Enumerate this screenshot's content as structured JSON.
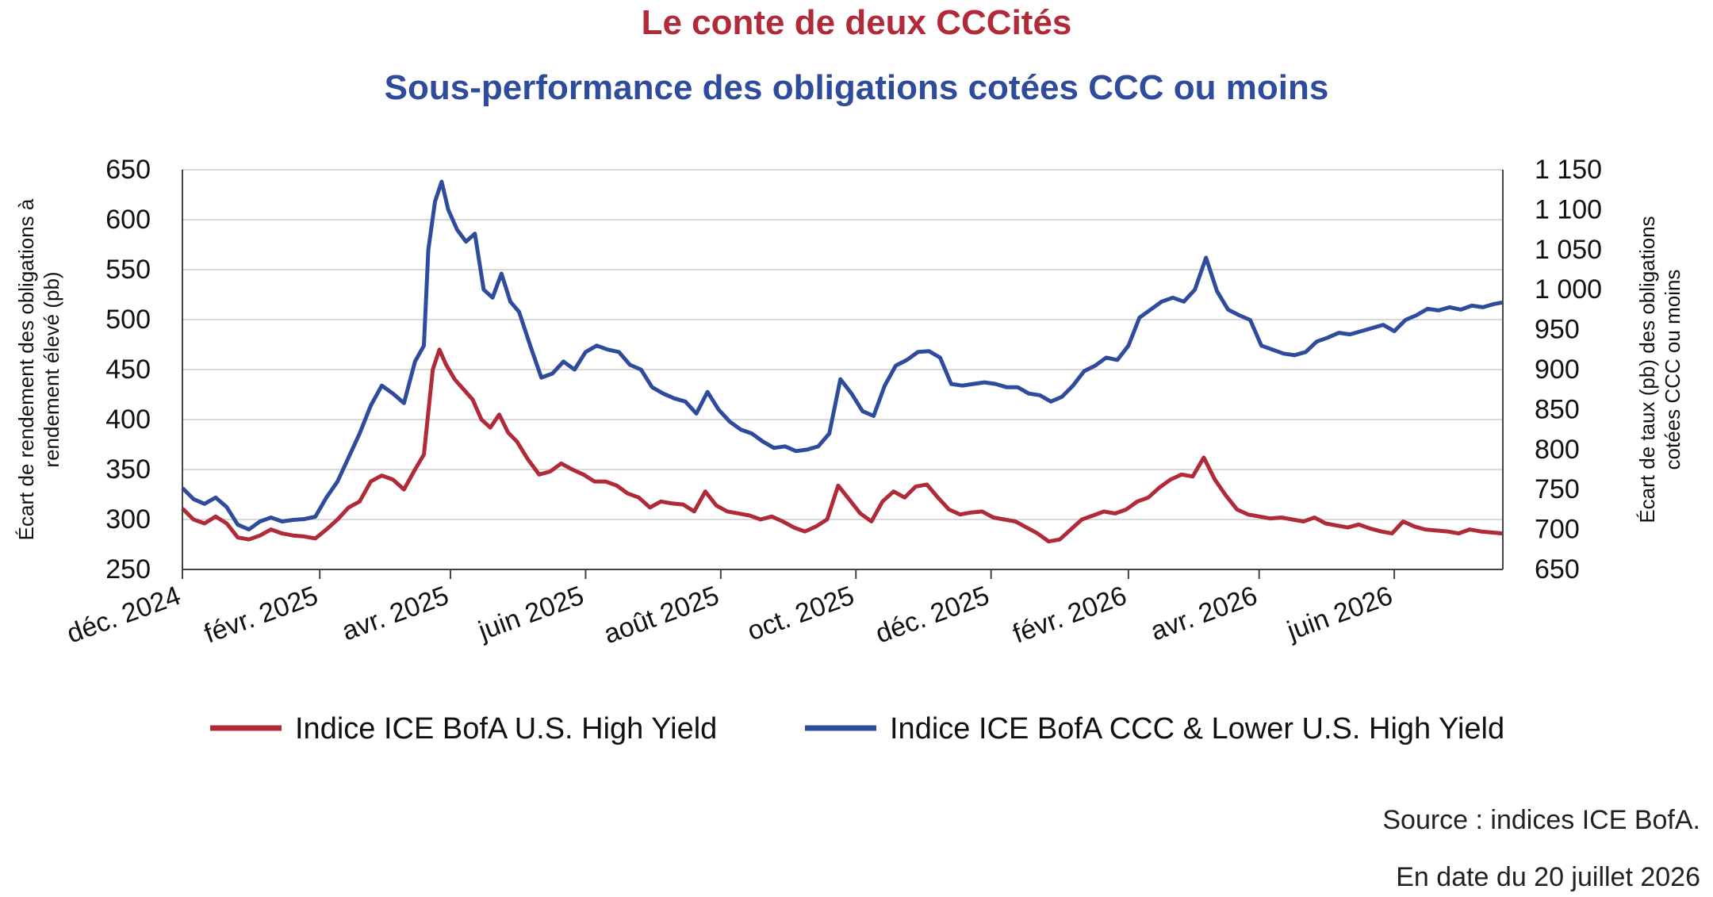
{
  "title": "Le conte de deux CCCités",
  "subtitle": "Sous-performance des obligations cotées CCC ou moins",
  "source": "Source : indices ICE BofA.",
  "as_of": "En date du 20 juillet 2026",
  "colors": {
    "hy": "#b02a38",
    "ccc": "#2f4b9c",
    "axis": "#444444",
    "grid": "#d9d9d9"
  },
  "chart_data": {
    "type": "line",
    "grid": "horizontal",
    "legend_position": "bottom",
    "y_left": {
      "label": "Écart de rendement des obligations à rendement élevé (pb)",
      "range": [
        250,
        650
      ],
      "ticks": [
        250,
        300,
        350,
        400,
        450,
        500,
        550,
        600,
        650
      ],
      "tick_labels": [
        "250",
        "300",
        "350",
        "400",
        "450",
        "500",
        "550",
        "600",
        "650"
      ]
    },
    "y_right": {
      "label": "Écart de taux (pb) des obligations cotées CCC ou moins",
      "range": [
        650,
        1150
      ],
      "ticks": [
        650,
        700,
        750,
        800,
        850,
        900,
        950,
        1000,
        1050,
        1100,
        1150
      ],
      "tick_labels": [
        "650",
        "700",
        "750",
        "800",
        "850",
        "900",
        "950",
        "1 000",
        "1 050",
        "1 100",
        "1 150"
      ]
    },
    "x_ticks": [
      {
        "date": "2024-12-01",
        "label": "déc. 2024"
      },
      {
        "date": "2025-02-01",
        "label": "févr. 2025"
      },
      {
        "date": "2025-04-01",
        "label": "avr. 2025"
      },
      {
        "date": "2025-06-01",
        "label": "juin 2025"
      },
      {
        "date": "2025-08-01",
        "label": "août 2025"
      },
      {
        "date": "2025-10-01",
        "label": "oct. 2025"
      },
      {
        "date": "2025-12-01",
        "label": "déc. 2025"
      },
      {
        "date": "2026-02-01",
        "label": "févr. 2026"
      },
      {
        "date": "2026-04-01",
        "label": "avr. 2026"
      },
      {
        "date": "2026-06-01",
        "label": "juin 2026"
      }
    ],
    "x_range": [
      "2024-12-01",
      "2026-07-20"
    ],
    "series": [
      {
        "name": "Indice ICE BofA U.S. High Yield",
        "axis": "left",
        "color": "#b02a38",
        "points": [
          [
            "2024-12-01",
            311
          ],
          [
            "2024-12-06",
            300
          ],
          [
            "2024-12-11",
            296
          ],
          [
            "2024-12-16",
            303
          ],
          [
            "2024-12-21",
            296
          ],
          [
            "2024-12-26",
            282
          ],
          [
            "2024-12-31",
            280
          ],
          [
            "2025-01-05",
            284
          ],
          [
            "2025-01-10",
            290
          ],
          [
            "2025-01-15",
            286
          ],
          [
            "2025-01-20",
            284
          ],
          [
            "2025-01-25",
            283
          ],
          [
            "2025-01-30",
            281
          ],
          [
            "2025-02-04",
            290
          ],
          [
            "2025-02-09",
            300
          ],
          [
            "2025-02-14",
            312
          ],
          [
            "2025-02-19",
            318
          ],
          [
            "2025-02-24",
            338
          ],
          [
            "2025-03-01",
            344
          ],
          [
            "2025-03-06",
            340
          ],
          [
            "2025-03-11",
            330
          ],
          [
            "2025-03-16",
            350
          ],
          [
            "2025-03-20",
            365
          ],
          [
            "2025-03-24",
            450
          ],
          [
            "2025-03-27",
            470
          ],
          [
            "2025-03-30",
            455
          ],
          [
            "2025-04-03",
            440
          ],
          [
            "2025-04-07",
            430
          ],
          [
            "2025-04-11",
            420
          ],
          [
            "2025-04-15",
            400
          ],
          [
            "2025-04-19",
            392
          ],
          [
            "2025-04-23",
            405
          ],
          [
            "2025-04-27",
            387
          ],
          [
            "2025-05-01",
            378
          ],
          [
            "2025-05-06",
            360
          ],
          [
            "2025-05-11",
            345
          ],
          [
            "2025-05-16",
            348
          ],
          [
            "2025-05-21",
            356
          ],
          [
            "2025-05-26",
            350
          ],
          [
            "2025-05-31",
            345
          ],
          [
            "2025-06-05",
            338
          ],
          [
            "2025-06-10",
            338
          ],
          [
            "2025-06-15",
            334
          ],
          [
            "2025-06-20",
            326
          ],
          [
            "2025-06-25",
            322
          ],
          [
            "2025-06-30",
            312
          ],
          [
            "2025-07-05",
            318
          ],
          [
            "2025-07-10",
            316
          ],
          [
            "2025-07-15",
            315
          ],
          [
            "2025-07-20",
            308
          ],
          [
            "2025-07-25",
            328
          ],
          [
            "2025-07-30",
            314
          ],
          [
            "2025-08-04",
            308
          ],
          [
            "2025-08-09",
            306
          ],
          [
            "2025-08-14",
            304
          ],
          [
            "2025-08-19",
            300
          ],
          [
            "2025-08-24",
            303
          ],
          [
            "2025-08-29",
            298
          ],
          [
            "2025-09-03",
            292
          ],
          [
            "2025-09-08",
            288
          ],
          [
            "2025-09-13",
            293
          ],
          [
            "2025-09-18",
            300
          ],
          [
            "2025-09-23",
            334
          ],
          [
            "2025-09-28",
            320
          ],
          [
            "2025-10-03",
            306
          ],
          [
            "2025-10-08",
            298
          ],
          [
            "2025-10-13",
            318
          ],
          [
            "2025-10-18",
            328
          ],
          [
            "2025-10-23",
            322
          ],
          [
            "2025-10-28",
            333
          ],
          [
            "2025-11-02",
            335
          ],
          [
            "2025-11-07",
            322
          ],
          [
            "2025-11-12",
            310
          ],
          [
            "2025-11-17",
            305
          ],
          [
            "2025-11-22",
            307
          ],
          [
            "2025-11-27",
            308
          ],
          [
            "2025-12-02",
            302
          ],
          [
            "2025-12-07",
            300
          ],
          [
            "2025-12-12",
            298
          ],
          [
            "2025-12-17",
            292
          ],
          [
            "2025-12-22",
            286
          ],
          [
            "2025-12-27",
            278
          ],
          [
            "2026-01-01",
            280
          ],
          [
            "2026-01-06",
            290
          ],
          [
            "2026-01-11",
            300
          ],
          [
            "2026-01-16",
            304
          ],
          [
            "2026-01-21",
            308
          ],
          [
            "2026-01-26",
            306
          ],
          [
            "2026-01-31",
            310
          ],
          [
            "2026-02-05",
            318
          ],
          [
            "2026-02-10",
            322
          ],
          [
            "2026-02-15",
            332
          ],
          [
            "2026-02-20",
            340
          ],
          [
            "2026-02-25",
            345
          ],
          [
            "2026-03-02",
            343
          ],
          [
            "2026-03-07",
            362
          ],
          [
            "2026-03-12",
            340
          ],
          [
            "2026-03-17",
            324
          ],
          [
            "2026-03-22",
            310
          ],
          [
            "2026-03-27",
            305
          ],
          [
            "2026-04-01",
            303
          ],
          [
            "2026-04-06",
            301
          ],
          [
            "2026-04-11",
            302
          ],
          [
            "2026-04-16",
            300
          ],
          [
            "2026-04-21",
            298
          ],
          [
            "2026-04-26",
            302
          ],
          [
            "2026-05-01",
            296
          ],
          [
            "2026-05-06",
            294
          ],
          [
            "2026-05-11",
            292
          ],
          [
            "2026-05-16",
            295
          ],
          [
            "2026-05-21",
            291
          ],
          [
            "2026-05-26",
            288
          ],
          [
            "2026-05-31",
            286
          ],
          [
            "2026-06-05",
            298
          ],
          [
            "2026-06-10",
            293
          ],
          [
            "2026-06-15",
            290
          ],
          [
            "2026-06-20",
            289
          ],
          [
            "2026-06-25",
            288
          ],
          [
            "2026-06-30",
            286
          ],
          [
            "2026-07-05",
            290
          ],
          [
            "2026-07-10",
            288
          ],
          [
            "2026-07-15",
            287
          ],
          [
            "2026-07-20",
            286
          ]
        ]
      },
      {
        "name": "Indice ICE BofA CCC & Lower U.S. High Yield",
        "axis": "right",
        "color": "#2f4b9c",
        "points": [
          [
            "2024-12-01",
            752
          ],
          [
            "2024-12-06",
            738
          ],
          [
            "2024-12-11",
            732
          ],
          [
            "2024-12-16",
            740
          ],
          [
            "2024-12-21",
            728
          ],
          [
            "2024-12-26",
            706
          ],
          [
            "2024-12-31",
            700
          ],
          [
            "2025-01-05",
            710
          ],
          [
            "2025-01-10",
            715
          ],
          [
            "2025-01-15",
            710
          ],
          [
            "2025-01-20",
            712
          ],
          [
            "2025-01-25",
            713
          ],
          [
            "2025-01-30",
            716
          ],
          [
            "2025-02-04",
            740
          ],
          [
            "2025-02-09",
            760
          ],
          [
            "2025-02-14",
            790
          ],
          [
            "2025-02-19",
            820
          ],
          [
            "2025-02-24",
            855
          ],
          [
            "2025-03-01",
            880
          ],
          [
            "2025-03-06",
            870
          ],
          [
            "2025-03-11",
            858
          ],
          [
            "2025-03-16",
            910
          ],
          [
            "2025-03-20",
            930
          ],
          [
            "2025-03-22",
            1050
          ],
          [
            "2025-03-25",
            1110
          ],
          [
            "2025-03-28",
            1135
          ],
          [
            "2025-03-31",
            1100
          ],
          [
            "2025-04-04",
            1075
          ],
          [
            "2025-04-08",
            1060
          ],
          [
            "2025-04-12",
            1070
          ],
          [
            "2025-04-16",
            1000
          ],
          [
            "2025-04-20",
            990
          ],
          [
            "2025-04-24",
            1020
          ],
          [
            "2025-04-28",
            985
          ],
          [
            "2025-05-02",
            972
          ],
          [
            "2025-05-07",
            930
          ],
          [
            "2025-05-12",
            890
          ],
          [
            "2025-05-17",
            895
          ],
          [
            "2025-05-22",
            910
          ],
          [
            "2025-05-27",
            900
          ],
          [
            "2025-06-01",
            922
          ],
          [
            "2025-06-06",
            930
          ],
          [
            "2025-06-11",
            925
          ],
          [
            "2025-06-16",
            922
          ],
          [
            "2025-06-21",
            906
          ],
          [
            "2025-06-26",
            900
          ],
          [
            "2025-07-01",
            878
          ],
          [
            "2025-07-06",
            870
          ],
          [
            "2025-07-11",
            864
          ],
          [
            "2025-07-16",
            860
          ],
          [
            "2025-07-21",
            845
          ],
          [
            "2025-07-26",
            872
          ],
          [
            "2025-07-31",
            850
          ],
          [
            "2025-08-05",
            835
          ],
          [
            "2025-08-10",
            825
          ],
          [
            "2025-08-15",
            820
          ],
          [
            "2025-08-20",
            810
          ],
          [
            "2025-08-25",
            802
          ],
          [
            "2025-08-30",
            804
          ],
          [
            "2025-09-04",
            798
          ],
          [
            "2025-09-09",
            800
          ],
          [
            "2025-09-14",
            804
          ],
          [
            "2025-09-19",
            820
          ],
          [
            "2025-09-24",
            888
          ],
          [
            "2025-09-29",
            870
          ],
          [
            "2025-10-04",
            848
          ],
          [
            "2025-10-09",
            842
          ],
          [
            "2025-10-14",
            880
          ],
          [
            "2025-10-19",
            905
          ],
          [
            "2025-10-24",
            912
          ],
          [
            "2025-10-29",
            922
          ],
          [
            "2025-11-03",
            923
          ],
          [
            "2025-11-08",
            915
          ],
          [
            "2025-11-13",
            882
          ],
          [
            "2025-11-18",
            880
          ],
          [
            "2025-11-23",
            882
          ],
          [
            "2025-11-28",
            884
          ],
          [
            "2025-12-03",
            882
          ],
          [
            "2025-12-08",
            878
          ],
          [
            "2025-12-13",
            878
          ],
          [
            "2025-12-18",
            870
          ],
          [
            "2025-12-23",
            868
          ],
          [
            "2025-12-28",
            860
          ],
          [
            "2026-01-02",
            866
          ],
          [
            "2026-01-07",
            880
          ],
          [
            "2026-01-12",
            898
          ],
          [
            "2026-01-17",
            905
          ],
          [
            "2026-01-22",
            915
          ],
          [
            "2026-01-27",
            912
          ],
          [
            "2026-02-01",
            930
          ],
          [
            "2026-02-06",
            965
          ],
          [
            "2026-02-11",
            975
          ],
          [
            "2026-02-16",
            985
          ],
          [
            "2026-02-21",
            990
          ],
          [
            "2026-02-26",
            985
          ],
          [
            "2026-03-03",
            1000
          ],
          [
            "2026-03-08",
            1040
          ],
          [
            "2026-03-13",
            998
          ],
          [
            "2026-03-18",
            975
          ],
          [
            "2026-03-23",
            968
          ],
          [
            "2026-03-28",
            962
          ],
          [
            "2026-04-02",
            930
          ],
          [
            "2026-04-07",
            925
          ],
          [
            "2026-04-12",
            920
          ],
          [
            "2026-04-17",
            918
          ],
          [
            "2026-04-22",
            922
          ],
          [
            "2026-04-27",
            935
          ],
          [
            "2026-05-02",
            940
          ],
          [
            "2026-05-07",
            946
          ],
          [
            "2026-05-12",
            944
          ],
          [
            "2026-05-17",
            948
          ],
          [
            "2026-05-22",
            952
          ],
          [
            "2026-05-27",
            956
          ],
          [
            "2026-06-01",
            948
          ],
          [
            "2026-06-06",
            962
          ],
          [
            "2026-06-11",
            968
          ],
          [
            "2026-06-16",
            976
          ],
          [
            "2026-06-21",
            974
          ],
          [
            "2026-06-26",
            978
          ],
          [
            "2026-07-01",
            975
          ],
          [
            "2026-07-06",
            980
          ],
          [
            "2026-07-11",
            978
          ],
          [
            "2026-07-16",
            982
          ],
          [
            "2026-07-20",
            984
          ]
        ]
      }
    ]
  }
}
